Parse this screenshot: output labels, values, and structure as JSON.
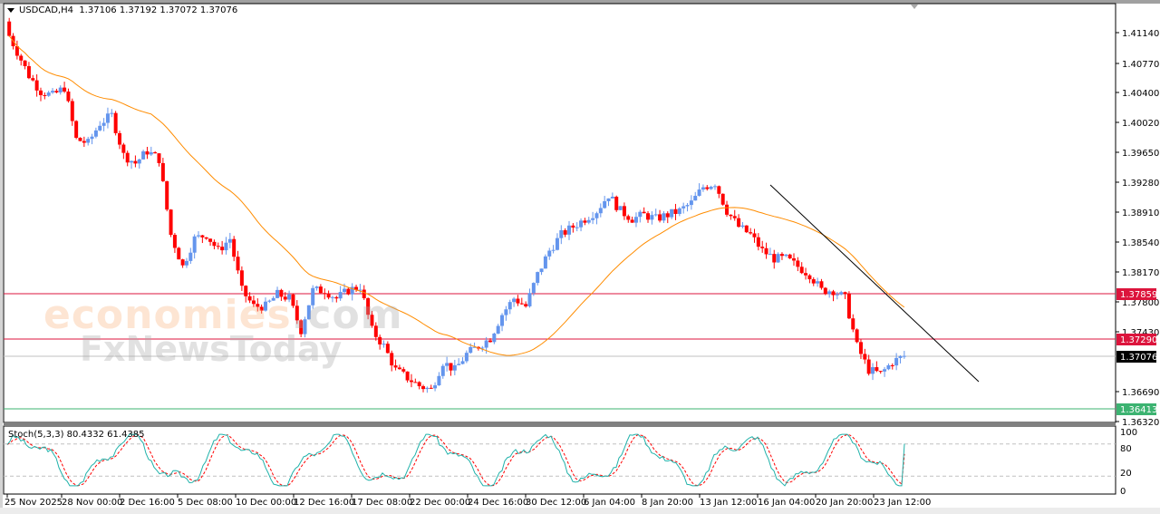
{
  "header": {
    "symbol": "USDCAD,H4",
    "ohlc": "1.37106 1.37192 1.37072 1.37076"
  },
  "stoch_label": "Stoch(5,3,3) 80.4332 61.4385",
  "watermark": {
    "line1_a": "economies",
    "line1_b": ".com",
    "line2": "FxNewsToday"
  },
  "colors": {
    "bull": "#6495ed",
    "bear": "#ff0000",
    "ma": "#ff8c00",
    "trendline": "#000000",
    "resistance": "#dc143c",
    "support": "#3cb371",
    "current": "#c0c0c0",
    "stoch_main": "#20b2aa",
    "stoch_signal": "#ff0000"
  },
  "chart_data": [
    {
      "type": "candlestick",
      "title": "USDCAD,H4",
      "ohlc_last": {
        "open": 1.37106,
        "high": 1.37192,
        "low": 1.37072,
        "close": 1.37076
      },
      "ylim": [
        1.632,
        1.414
      ],
      "y_ticks": [
        "1.41140",
        "1.40770",
        "1.40400",
        "1.40020",
        "1.39650",
        "1.39280",
        "1.38910",
        "1.38540",
        "1.38170",
        "1.37800",
        "1.37430",
        "1.36690",
        "1.36320"
      ],
      "x_ticks": [
        "25 Nov 2025",
        "28 Nov 00:00",
        "2 Dec 16:00",
        "5 Dec 08:00",
        "10 Dec 00:00",
        "12 Dec 16:00",
        "17 Dec 08:00",
        "22 Dec 00:00",
        "24 Dec 16:00",
        "30 Dec 12:00",
        "6 Jan 04:00",
        "8 Jan 20:00",
        "13 Jan 12:00",
        "16 Jan 04:00",
        "20 Jan 20:00",
        "23 Jan 12:00"
      ],
      "horizontal_lines": [
        {
          "label": "1.37859",
          "value": 1.37859,
          "color": "#dc143c"
        },
        {
          "label": "1.37290",
          "value": 1.3729,
          "color": "#dc143c"
        },
        {
          "label": "1.37076",
          "value": 1.37076,
          "color": "#c0c0c0",
          "role": "current price"
        },
        {
          "label": "1.36413",
          "value": 1.36413,
          "color": "#3cb371"
        }
      ],
      "trendline": {
        "from": {
          "x_label": "16 Jan 04:00",
          "y": 1.3928
        },
        "to": {
          "x_label": "after 23 Jan",
          "y": 1.368
        }
      },
      "price_path_close": [
        1.412,
        1.409,
        1.406,
        1.404,
        1.4035,
        1.4045,
        1.398,
        1.3975,
        1.4,
        1.401,
        1.396,
        1.395,
        1.3965,
        1.3955,
        1.386,
        1.382,
        1.3855,
        1.386,
        1.384,
        1.3855,
        1.379,
        1.377,
        1.377,
        1.3785,
        1.378,
        1.374,
        1.379,
        1.379,
        1.378,
        1.379,
        1.3795,
        1.374,
        1.372,
        1.369,
        1.368,
        1.367,
        1.3665,
        1.37,
        1.369,
        1.371,
        1.372,
        1.373,
        1.376,
        1.378,
        1.377,
        1.381,
        1.384,
        1.386,
        1.387,
        1.388,
        1.389,
        1.391,
        1.389,
        1.388,
        1.3885,
        1.388,
        1.3885,
        1.389,
        1.39,
        1.392,
        1.3925,
        1.389,
        1.387,
        1.386,
        1.384,
        1.383,
        1.383,
        1.382,
        1.381,
        1.379,
        1.379,
        1.378,
        1.372,
        1.369,
        1.3685,
        1.37,
        1.37076
      ]
    },
    {
      "type": "line",
      "title": "Stoch(5,3,3) 80.4332 61.4385",
      "ylim": [
        0,
        100
      ],
      "y_ticks": [
        "100",
        "80",
        "20",
        "0"
      ],
      "levels": [
        80,
        20
      ],
      "series": [
        {
          "name": "Main %K",
          "last": 80.4332
        },
        {
          "name": "Signal %D",
          "last": 61.4385
        }
      ]
    }
  ]
}
